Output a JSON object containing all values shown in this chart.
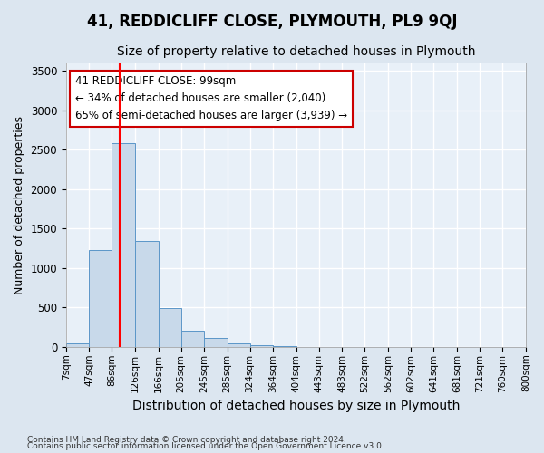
{
  "title": "41, REDDICLIFF CLOSE, PLYMOUTH, PL9 9QJ",
  "subtitle": "Size of property relative to detached houses in Plymouth",
  "xlabel": "Distribution of detached houses by size in Plymouth",
  "ylabel": "Number of detached properties",
  "bar_bins": [
    7,
    47,
    86,
    126,
    166,
    205,
    245,
    285,
    324,
    364,
    404,
    443,
    483,
    522,
    562,
    602,
    641,
    681,
    721,
    760,
    800
  ],
  "bar_values": [
    50,
    1230,
    2580,
    1340,
    490,
    200,
    110,
    50,
    20,
    8,
    3,
    1,
    1,
    0,
    0,
    0,
    0,
    0,
    0,
    0
  ],
  "bar_color": "#c8d9ea",
  "bar_edgecolor": "#5b96c8",
  "red_line_x": 99,
  "annotation_text": "41 REDDICLIFF CLOSE: 99sqm\n← 34% of detached houses are smaller (2,040)\n65% of semi-detached houses are larger (3,939) →",
  "annotation_box_color": "#ffffff",
  "annotation_border_color": "#cc0000",
  "ylim": [
    0,
    3600
  ],
  "yticks": [
    0,
    500,
    1000,
    1500,
    2000,
    2500,
    3000,
    3500
  ],
  "footer_line1": "Contains HM Land Registry data © Crown copyright and database right 2024.",
  "footer_line2": "Contains public sector information licensed under the Open Government Licence v3.0.",
  "bg_color": "#dce6f0",
  "plot_bg_color": "#e8f0f8",
  "grid_color": "#ffffff",
  "title_fontsize": 12,
  "subtitle_fontsize": 10,
  "ylabel_fontsize": 9,
  "xlabel_fontsize": 10
}
